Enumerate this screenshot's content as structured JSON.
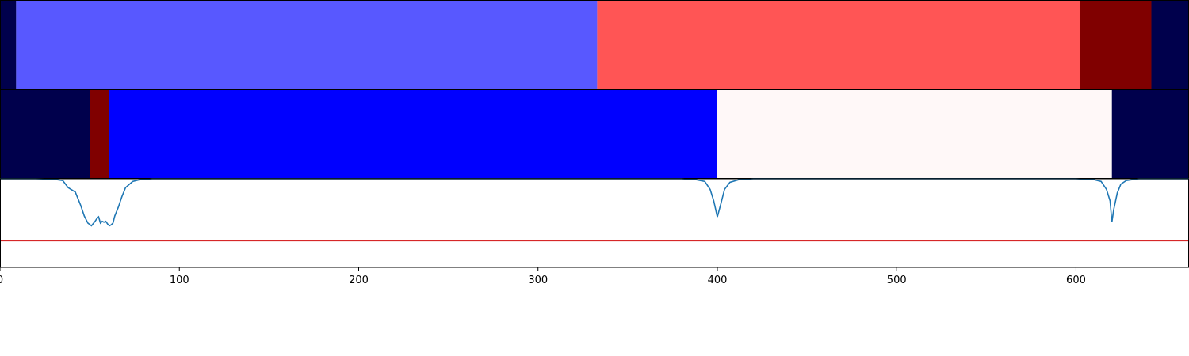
{
  "chart_data": {
    "type": "heatmap",
    "x_range": [
      0,
      663
    ],
    "x_ticks": [
      0,
      100,
      200,
      300,
      400,
      500,
      600
    ],
    "grid": false,
    "legend": "none",
    "rows": [
      {
        "segments": [
          {
            "start": 0,
            "end": 9,
            "color": "#00004c"
          },
          {
            "start": 9,
            "end": 333,
            "color": "#5858ff"
          },
          {
            "start": 333,
            "end": 602,
            "color": "#ff5555"
          },
          {
            "start": 602,
            "end": 642,
            "color": "#800000"
          },
          {
            "start": 642,
            "end": 663,
            "color": "#00004c"
          }
        ]
      },
      {
        "segments": [
          {
            "start": 0,
            "end": 50,
            "color": "#00004c"
          },
          {
            "start": 50,
            "end": 61,
            "color": "#800000"
          },
          {
            "start": 61,
            "end": 400,
            "color": "#0000ff"
          },
          {
            "start": 400,
            "end": 620,
            "color": "#fff8f8"
          },
          {
            "start": 620,
            "end": 663,
            "color": "#00004c"
          }
        ]
      }
    ],
    "line_panel": {
      "ylim": [
        0,
        1
      ],
      "threshold": 0.3,
      "threshold_color": "#d62728",
      "line_color": "#1f77b4",
      "series": {
        "x": [
          0,
          20,
          30,
          35,
          38,
          42,
          45,
          47,
          49,
          51,
          53,
          54,
          55,
          56,
          57,
          58,
          59,
          60,
          61,
          62,
          63,
          64,
          66,
          68,
          70,
          74,
          78,
          85,
          95,
          200,
          380,
          388,
          393,
          396,
          398,
          400,
          402,
          404,
          407,
          412,
          420,
          440,
          600,
          610,
          614,
          617,
          619,
          620,
          621,
          623,
          625,
          628,
          635,
          650,
          663
        ],
        "y": [
          1.0,
          1.0,
          0.995,
          0.98,
          0.9,
          0.85,
          0.7,
          0.58,
          0.5,
          0.47,
          0.52,
          0.55,
          0.57,
          0.5,
          0.52,
          0.51,
          0.52,
          0.49,
          0.47,
          0.48,
          0.5,
          0.58,
          0.68,
          0.8,
          0.9,
          0.97,
          0.99,
          1.0,
          1.0,
          1.0,
          1.0,
          0.99,
          0.97,
          0.88,
          0.75,
          0.57,
          0.72,
          0.88,
          0.96,
          0.99,
          1.0,
          1.0,
          1.0,
          0.99,
          0.97,
          0.88,
          0.75,
          0.51,
          0.65,
          0.84,
          0.94,
          0.98,
          1.0,
          1.0,
          1.0
        ]
      }
    }
  }
}
